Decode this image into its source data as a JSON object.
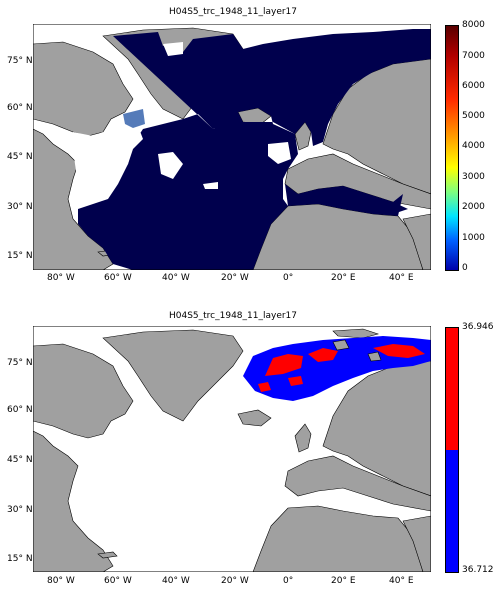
{
  "panels": [
    {
      "title": "H04S5_trc_1948_11_layer17",
      "colorbar": {
        "type": "continuous",
        "ticks": [
          "8000",
          "7000",
          "6000",
          "5000",
          "4000",
          "3000",
          "2000",
          "1000",
          "0"
        ]
      },
      "ocean_color": "#00004d",
      "land_color": "#a0a0a0",
      "highlight_color": "#2b5aa8"
    },
    {
      "title": "H04S5_trc_1948_11_layer17",
      "colorbar": {
        "type": "two-class",
        "ticks_top": "36.946",
        "ticks_bottom": "36.712",
        "colors": [
          "#ff0000",
          "#0000ff"
        ]
      },
      "ocean_color": "#ffffff",
      "land_color": "#a0a0a0"
    }
  ],
  "lat_labels": [
    "75° N",
    "60° N",
    "45° N",
    "30° N",
    "15° N"
  ],
  "lon_labels": [
    "80° W",
    "60° W",
    "40° W",
    "20° W",
    "0°",
    "20° E",
    "40° E"
  ]
}
